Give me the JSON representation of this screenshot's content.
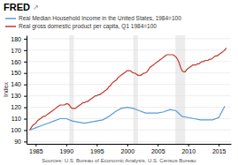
{
  "chart_data": {
    "type": "line",
    "title": "FRED",
    "annotations": [
      "↗",
      "Sources: U.S. Bureau of Economic Analysis, U.S. Census Bureau"
    ],
    "y_label": "Index",
    "xlim": [
      1983.5,
      2017.0
    ],
    "xticks": [
      1985,
      1990,
      1995,
      2000,
      2005,
      2010,
      2015
    ],
    "ylim": [
      88,
      183
    ],
    "yticks": [
      90,
      100,
      110,
      120,
      130,
      140,
      150,
      160,
      170,
      180
    ],
    "grid": true,
    "legend": "top",
    "recession_bands": [
      [
        1990.5,
        1991.25
      ],
      [
        2001.0,
        2001.75
      ],
      [
        2007.9,
        2009.5
      ]
    ],
    "series": [
      {
        "name": "Real Median Household Income in the United States, 1984=100",
        "color": "#5b9bd5",
        "x": [
          1984,
          1985,
          1986,
          1987,
          1988,
          1989,
          1990,
          1991,
          1992,
          1993,
          1994,
          1995,
          1996,
          1997,
          1998,
          1999,
          2000,
          2001,
          2002,
          2003,
          2004,
          2005,
          2006,
          2007,
          2008,
          2009,
          2010,
          2011,
          2012,
          2013,
          2014,
          2015,
          2016
        ],
        "values": [
          100,
          102,
          104,
          106,
          108,
          110,
          110,
          108,
          107,
          106,
          107,
          108,
          109,
          112,
          116,
          119,
          120,
          119,
          117,
          115,
          115,
          115,
          116,
          118,
          117,
          112,
          111,
          110,
          109,
          109,
          109,
          111,
          121
        ]
      },
      {
        "name": "Real gross domestic product per capita, Q1 1984=100",
        "color": "#c0392b",
        "x": [
          1984,
          1984.25,
          1984.5,
          1984.75,
          1985,
          1985.25,
          1985.5,
          1985.75,
          1986,
          1986.25,
          1986.5,
          1986.75,
          1987,
          1987.25,
          1987.5,
          1987.75,
          1988,
          1988.25,
          1988.5,
          1988.75,
          1989,
          1989.25,
          1989.5,
          1989.75,
          1990,
          1990.25,
          1990.5,
          1990.75,
          1991,
          1991.25,
          1991.5,
          1991.75,
          1992,
          1992.25,
          1992.5,
          1992.75,
          1993,
          1993.25,
          1993.5,
          1993.75,
          1994,
          1994.25,
          1994.5,
          1994.75,
          1995,
          1995.25,
          1995.5,
          1995.75,
          1996,
          1996.25,
          1996.5,
          1996.75,
          1997,
          1997.25,
          1997.5,
          1997.75,
          1998,
          1998.25,
          1998.5,
          1998.75,
          1999,
          1999.25,
          1999.5,
          1999.75,
          2000,
          2000.25,
          2000.5,
          2000.75,
          2001,
          2001.25,
          2001.5,
          2001.75,
          2002,
          2002.25,
          2002.5,
          2002.75,
          2003,
          2003.25,
          2003.5,
          2003.75,
          2004,
          2004.25,
          2004.5,
          2004.75,
          2005,
          2005.25,
          2005.5,
          2005.75,
          2006,
          2006.25,
          2006.5,
          2006.75,
          2007,
          2007.25,
          2007.5,
          2007.75,
          2008,
          2008.25,
          2008.5,
          2008.75,
          2009,
          2009.25,
          2009.5,
          2009.75,
          2010,
          2010.25,
          2010.5,
          2010.75,
          2011,
          2011.25,
          2011.5,
          2011.75,
          2012,
          2012.25,
          2012.5,
          2012.75,
          2013,
          2013.25,
          2013.5,
          2013.75,
          2014,
          2014.25,
          2014.5,
          2014.75,
          2015,
          2015.25,
          2015.5,
          2015.75,
          2016,
          2016.25
        ],
        "values": [
          100,
          102,
          104,
          105,
          106,
          108,
          109,
          110,
          111,
          112,
          112,
          113,
          114,
          115,
          116,
          117,
          118,
          119,
          120,
          121,
          122,
          122,
          122,
          122,
          123,
          123,
          122,
          120,
          119,
          119,
          119,
          120,
          121,
          122,
          123,
          124,
          124,
          125,
          125,
          126,
          127,
          128,
          129,
          130,
          130,
          131,
          131,
          132,
          133,
          134,
          135,
          136,
          138,
          139,
          141,
          142,
          143,
          144,
          146,
          147,
          148,
          149,
          150,
          151,
          152,
          152,
          152,
          151,
          150,
          150,
          149,
          148,
          148,
          148,
          149,
          150,
          150,
          151,
          153,
          155,
          156,
          157,
          158,
          159,
          160,
          161,
          162,
          163,
          164,
          165,
          166,
          166,
          166,
          166,
          166,
          165,
          164,
          162,
          159,
          155,
          152,
          151,
          151,
          153,
          154,
          155,
          156,
          157,
          157,
          157,
          158,
          158,
          159,
          160,
          160,
          161,
          161,
          161,
          162,
          162,
          163,
          164,
          165,
          165,
          166,
          167,
          168,
          169,
          170,
          172
        ]
      }
    ]
  }
}
